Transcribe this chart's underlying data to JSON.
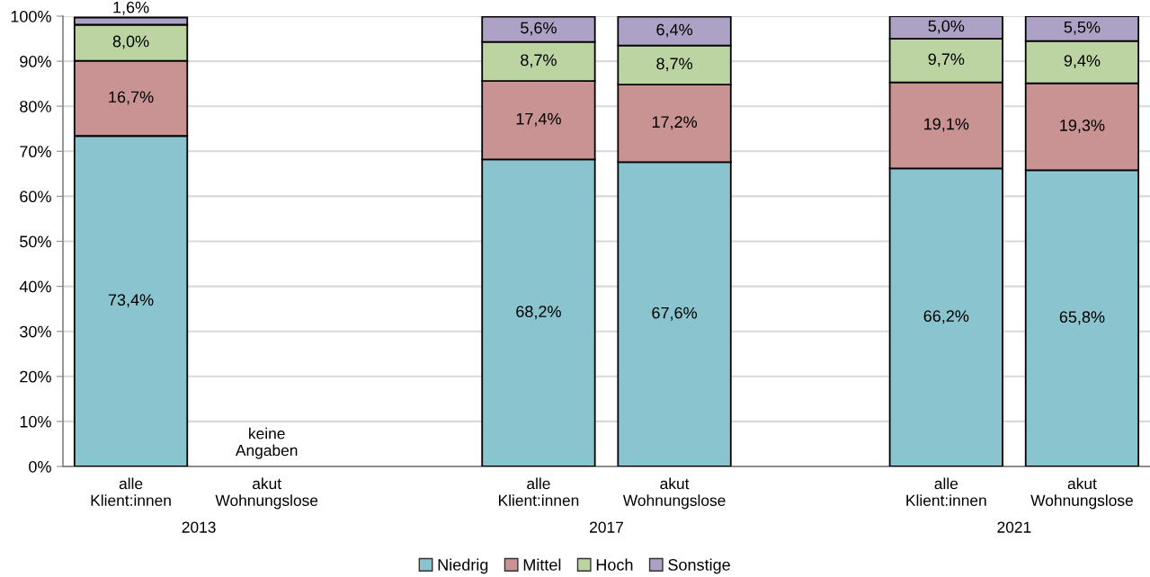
{
  "chart_data": {
    "type": "bar",
    "stacked": true,
    "categories": [
      "alle\nKlient:innen",
      "akut\nWohnungslose",
      null,
      "alle\nKlient:innen",
      "akut\nWohnungslose",
      null,
      "alle\nKlient:innen",
      "akut\nWohnungslose"
    ],
    "series": [
      {
        "name": "Niedrig",
        "color": "#8ac4cf",
        "values": [
          73.4,
          null,
          null,
          68.2,
          67.6,
          null,
          66.2,
          65.8
        ],
        "value_labels": [
          "73,4%",
          null,
          null,
          "68,2%",
          "67,6%",
          null,
          "66,2%",
          "65,8%"
        ]
      },
      {
        "name": "Mittel",
        "color": "#c99393",
        "values": [
          16.7,
          null,
          null,
          17.4,
          17.2,
          null,
          19.1,
          19.3
        ],
        "value_labels": [
          "16,7%",
          null,
          null,
          "17,4%",
          "17,2%",
          null,
          "19,1%",
          "19,3%"
        ]
      },
      {
        "name": "Hoch",
        "color": "#bcd4a2",
        "values": [
          8.0,
          null,
          null,
          8.7,
          8.7,
          null,
          9.7,
          9.4
        ],
        "value_labels": [
          "8,0%",
          null,
          null,
          "8,7%",
          "8,7%",
          null,
          "9,7%",
          "9,4%"
        ]
      },
      {
        "name": "Sonstige",
        "color": "#ada2c5",
        "values": [
          1.6,
          null,
          null,
          5.6,
          6.4,
          null,
          5.0,
          5.5
        ],
        "value_labels": [
          "1,6%",
          null,
          null,
          "5,6%",
          "6,4%",
          null,
          "5,0%",
          "5,5%"
        ]
      }
    ],
    "ylim": [
      0,
      100
    ],
    "yticks": [
      {
        "value": 0,
        "label": "0%"
      },
      {
        "value": 10,
        "label": "10%"
      },
      {
        "value": 20,
        "label": "20%"
      },
      {
        "value": 30,
        "label": "30%"
      },
      {
        "value": 40,
        "label": "40%"
      },
      {
        "value": 50,
        "label": "50%"
      },
      {
        "value": 60,
        "label": "60%"
      },
      {
        "value": 70,
        "label": "70%"
      },
      {
        "value": 80,
        "label": "80%"
      },
      {
        "value": 90,
        "label": "90%"
      },
      {
        "value": 100,
        "label": "100%"
      }
    ],
    "grid": "y",
    "legend": "bottom",
    "annotations": [
      "keine\nAngaben",
      "2013",
      "2017",
      "2021"
    ]
  }
}
